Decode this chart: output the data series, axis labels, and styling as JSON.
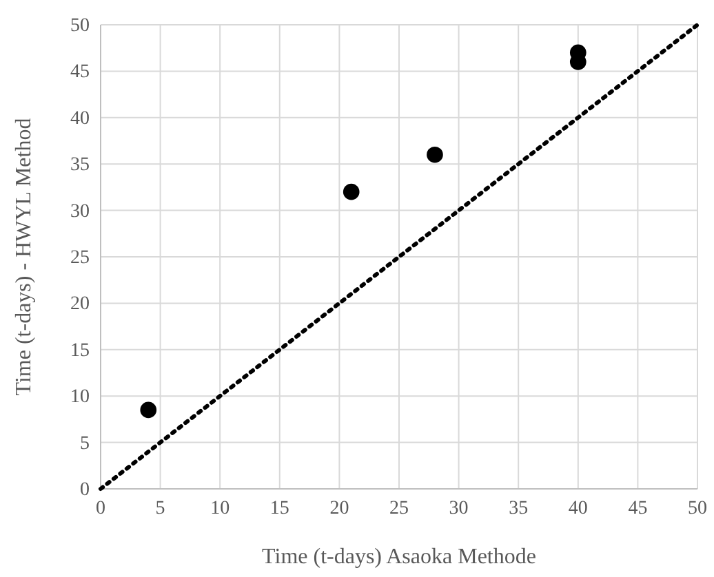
{
  "chart_data": {
    "type": "scatter",
    "xlabel": "Time (t-days) Asaoka Methode",
    "ylabel": "Time (t-days) - HWYL Method",
    "xlim": [
      0,
      50
    ],
    "ylim": [
      0,
      50
    ],
    "xticks": [
      0,
      5,
      10,
      15,
      20,
      25,
      30,
      35,
      40,
      45,
      50
    ],
    "yticks": [
      0,
      5,
      10,
      15,
      20,
      25,
      30,
      35,
      40,
      45,
      50
    ],
    "grid": true,
    "series": [
      {
        "color": "#000000",
        "marker": "circle",
        "x": [
          4,
          21,
          28,
          40,
          40
        ],
        "values": [
          8.5,
          32,
          36,
          46,
          47
        ]
      },
      {
        "type": "line",
        "color": "#000000",
        "marker": "none",
        "line_style": "dotted",
        "x": [
          0,
          50
        ],
        "values": [
          0,
          50
        ]
      }
    ]
  }
}
